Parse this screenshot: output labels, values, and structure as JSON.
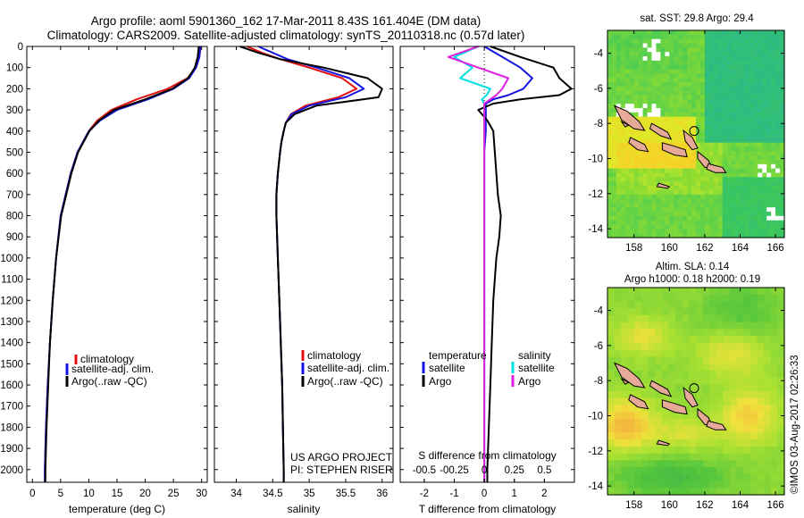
{
  "header": {
    "line1": "Argo profile: aoml 5901360_162 17-Mar-2011 8.43S 161.404E (DM data)",
    "line2": "Climatology: CARS2009. Satellite-adjusted climatology: synTS_20110318.nc (0.57d later)"
  },
  "colors": {
    "climatology": "#e01010",
    "satellite": "#1414e0",
    "argo": "#000000",
    "sal_satellite": "#00e0e0",
    "sal_argo": "#e020e0"
  },
  "legend": {
    "climatology": "climatology",
    "satellite": "satellite-adj. clim.",
    "argo": "Argo(..raw -QC)",
    "diff_temp_title": "temperature",
    "diff_sal_title": "salinity",
    "diff_satellite": "satellite",
    "diff_argo": "Argo"
  },
  "credits": {
    "project": "US ARGO PROJECT",
    "pi": "PI: STEPHEN RISER"
  },
  "watermark": "©IMOS 03-Aug-2017 02:26:33",
  "chart_data": [
    {
      "type": "line",
      "name": "temperature",
      "xlabel": "temperature (deg C)",
      "ylabel": "",
      "xlim": [
        -1,
        31
      ],
      "ylim": [
        2060,
        0
      ],
      "x_ticks": [
        0,
        5,
        10,
        15,
        20,
        25,
        30
      ],
      "y_ticks": [
        0,
        100,
        200,
        300,
        400,
        500,
        600,
        700,
        800,
        900,
        1000,
        1100,
        1200,
        1300,
        1400,
        1500,
        1600,
        1700,
        1800,
        1900,
        2000
      ],
      "depth": [
        0,
        50,
        100,
        150,
        200,
        250,
        300,
        350,
        400,
        500,
        600,
        800,
        1000,
        1200,
        1400,
        1600,
        1800,
        2000,
        2060
      ],
      "series": [
        {
          "key": "climatology",
          "values": [
            29.8,
            29.6,
            29.0,
            27.5,
            24.0,
            18.5,
            14.0,
            11.5,
            10.0,
            8.0,
            6.8,
            5.0,
            4.2,
            3.6,
            3.1,
            2.7,
            2.4,
            2.2,
            2.2
          ]
        },
        {
          "key": "satellite",
          "values": [
            29.8,
            29.6,
            29.0,
            27.8,
            25.0,
            20.5,
            15.0,
            12.0,
            10.0,
            8.0,
            6.8,
            5.0,
            4.2,
            3.6,
            3.1,
            2.7,
            2.4,
            2.2,
            2.2
          ]
        },
        {
          "key": "argo",
          "values": [
            29.5,
            29.3,
            28.8,
            27.6,
            24.8,
            20.0,
            14.5,
            11.8,
            10.1,
            8.1,
            6.9,
            5.1,
            4.2,
            3.6,
            3.1,
            2.8,
            2.5,
            2.3,
            2.3
          ]
        }
      ]
    },
    {
      "type": "line",
      "name": "salinity",
      "xlabel": "salinity",
      "ylabel": "",
      "xlim": [
        33.7,
        36.15
      ],
      "ylim": [
        2060,
        0
      ],
      "x_ticks": [
        34,
        34.5,
        35,
        35.5,
        36
      ],
      "depth": [
        0,
        30,
        60,
        100,
        150,
        200,
        240,
        280,
        320,
        360,
        400,
        450,
        500,
        600,
        700,
        800,
        900,
        1000,
        1200,
        1400,
        1600,
        1800,
        2000,
        2060
      ],
      "series": [
        {
          "key": "climatology",
          "values": [
            34.15,
            34.35,
            34.6,
            35.0,
            35.45,
            35.65,
            35.4,
            34.95,
            34.75,
            34.68,
            34.65,
            34.62,
            34.6,
            34.57,
            34.55,
            34.55,
            34.56,
            34.57,
            34.59,
            34.61,
            34.63,
            34.64,
            34.65,
            34.65
          ]
        },
        {
          "key": "satellite",
          "values": [
            34.3,
            34.5,
            34.7,
            35.1,
            35.55,
            35.75,
            35.5,
            35.0,
            34.76,
            34.68,
            34.65,
            34.62,
            34.6,
            34.57,
            34.55,
            34.55,
            34.56,
            34.57,
            34.59,
            34.61,
            34.63,
            34.64,
            34.65,
            34.65
          ]
        },
        {
          "key": "argo",
          "values": [
            34.05,
            34.3,
            34.6,
            35.2,
            35.8,
            36.0,
            35.95,
            35.1,
            34.8,
            34.68,
            34.65,
            34.62,
            34.6,
            34.57,
            34.55,
            34.55,
            34.56,
            34.57,
            34.59,
            34.61,
            34.63,
            34.64,
            34.65,
            34.65
          ]
        }
      ]
    },
    {
      "type": "line",
      "name": "difference",
      "xlabel": "T difference from climatology",
      "x2label": "S difference from climatology",
      "xlim": [
        -2.8,
        3.0
      ],
      "ylim": [
        2060,
        0
      ],
      "x_ticks": [
        -2,
        -1,
        0,
        1,
        2
      ],
      "x2_ticks": [
        -0.5,
        -0.25,
        0,
        0.25,
        0.5
      ],
      "s_scale": 4,
      "depth": [
        0,
        50,
        100,
        150,
        200,
        230,
        250,
        270,
        300,
        350,
        400,
        500,
        600,
        700,
        800,
        900,
        1000,
        1100,
        1200,
        1400,
        1600,
        1800,
        2000,
        2060
      ],
      "series": [
        {
          "key": "satellite",
          "quantity": "T",
          "values": [
            0.0,
            0.6,
            1.2,
            1.6,
            1.3,
            0.8,
            0.3,
            0.05,
            0.05,
            0.05,
            0.05,
            0.0,
            0.0,
            0.0,
            0.0,
            0.0,
            0.0,
            0.0,
            0.0,
            0.0,
            0.0,
            0.0,
            0.0,
            0.0
          ]
        },
        {
          "key": "argo",
          "quantity": "T",
          "values": [
            0.2,
            1.2,
            2.3,
            2.5,
            2.9,
            2.5,
            1.2,
            0.3,
            -0.2,
            0.1,
            0.3,
            0.35,
            0.4,
            0.45,
            0.55,
            0.5,
            0.4,
            0.35,
            0.3,
            0.25,
            0.2,
            0.15,
            0.1,
            0.1
          ]
        },
        {
          "key": "sal_satellite",
          "quantity": "S",
          "values": [
            -0.05,
            -0.25,
            -0.1,
            -0.2,
            0.05,
            0.02,
            -0.02,
            0.0,
            0.0,
            0.0,
            0.0,
            0.0,
            0.0,
            0.0,
            0.0,
            0.0,
            0.0,
            0.0,
            0.0,
            0.0,
            0.0,
            0.0,
            0.0,
            0.0
          ]
        },
        {
          "key": "sal_argo",
          "quantity": "S",
          "values": [
            -0.05,
            -0.3,
            -0.05,
            0.2,
            0.15,
            0.1,
            0.05,
            0.0,
            0.0,
            0.0,
            0.0,
            0.0,
            0.0,
            0.0,
            0.0,
            0.0,
            0.0,
            0.0,
            0.0,
            0.0,
            0.0,
            0.0,
            0.0,
            0.0
          ]
        }
      ]
    },
    {
      "type": "heatmap",
      "name": "sst_map",
      "title": "sat. SST: 29.8 Argo: 29.4",
      "xlim": [
        156.5,
        166.5
      ],
      "ylim": [
        -14.5,
        -2.7
      ],
      "x_ticks": [
        158,
        160,
        162,
        164,
        166
      ],
      "y_ticks": [
        -4,
        -6,
        -8,
        -10,
        -12,
        -14
      ],
      "profile_marker": [
        161.4,
        -8.43
      ]
    },
    {
      "type": "heatmap",
      "name": "sla_map",
      "title": "Altim. SLA: 0.14",
      "subtitle": "Argo h1000: 0.18 h2000: 0.19",
      "xlim": [
        156.5,
        166.5
      ],
      "ylim": [
        -14.5,
        -2.7
      ],
      "x_ticks": [
        158,
        160,
        162,
        164,
        166
      ],
      "y_ticks": [
        -4,
        -6,
        -8,
        -10,
        -12,
        -14
      ],
      "profile_marker": [
        161.4,
        -8.43
      ]
    }
  ]
}
